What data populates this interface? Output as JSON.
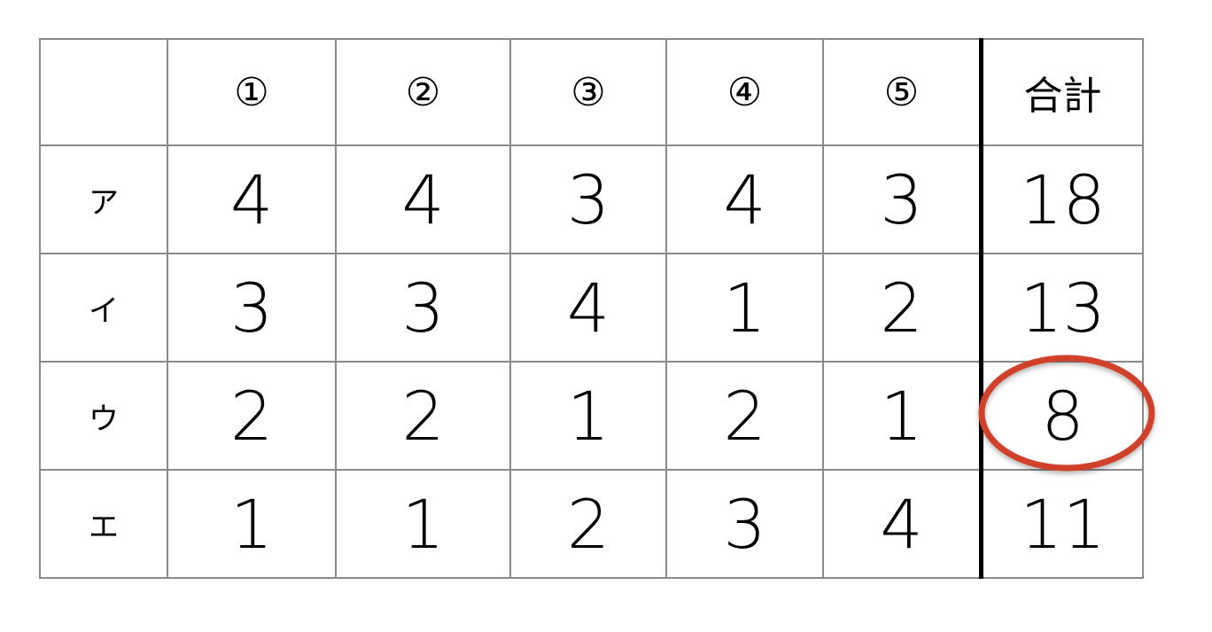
{
  "table": {
    "corner": "",
    "columns": [
      "①",
      "②",
      "③",
      "④",
      "⑤"
    ],
    "total_header": "合計",
    "rows": [
      {
        "label": "ア",
        "values": [
          "4",
          "4",
          "3",
          "4",
          "3"
        ],
        "total": "18"
      },
      {
        "label": "イ",
        "values": [
          "3",
          "3",
          "4",
          "1",
          "2"
        ],
        "total": "13"
      },
      {
        "label": "ウ",
        "values": [
          "2",
          "2",
          "1",
          "2",
          "1"
        ],
        "total": "8"
      },
      {
        "label": "エ",
        "values": [
          "1",
          "1",
          "2",
          "3",
          "4"
        ],
        "total": "11"
      }
    ]
  },
  "highlight": {
    "row": "ウ",
    "column": "合計",
    "shape": "ellipse",
    "color": "#d0402a"
  }
}
